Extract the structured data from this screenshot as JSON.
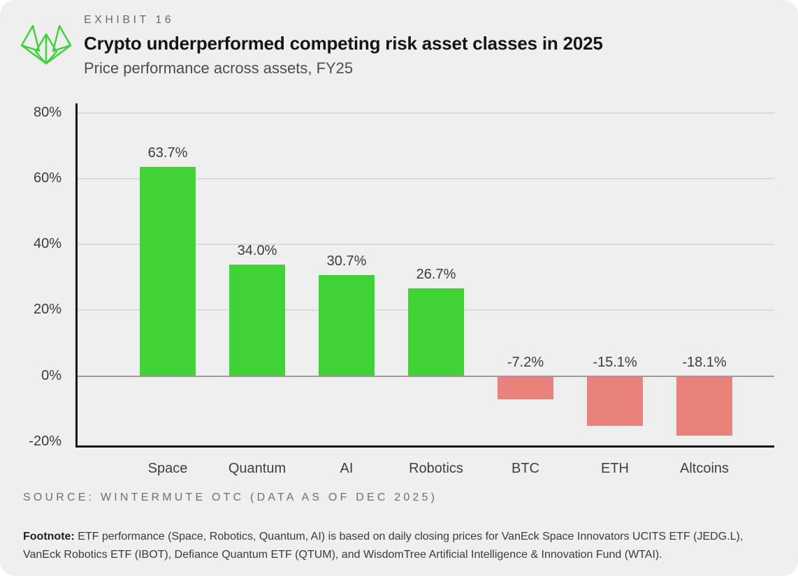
{
  "header": {
    "exhibit_label": "EXHIBIT 16",
    "title": "Crypto underperformed competing risk asset classes in 2025",
    "subtitle": "Price performance across assets, FY25"
  },
  "chart_data": {
    "type": "bar",
    "title": "Price performance across assets, FY25",
    "categories": [
      "Space",
      "Quantum",
      "AI",
      "Robotics",
      "BTC",
      "ETH",
      "Altcoins"
    ],
    "values": [
      63.7,
      34.0,
      30.7,
      26.7,
      -7.2,
      -15.1,
      -18.1
    ],
    "value_labels": [
      "63.7%",
      "34.0%",
      "30.7%",
      "26.7%",
      "-7.2%",
      "-15.1%",
      "-18.1%"
    ],
    "yticks": [
      80,
      60,
      40,
      20,
      0,
      -20
    ],
    "ytick_labels": [
      "80%",
      "60%",
      "40%",
      "20%",
      "0%",
      "-20%"
    ],
    "ylim": [
      -20.5,
      83
    ],
    "grid": true,
    "legend": "none",
    "xlabel": "",
    "ylabel": "",
    "colors": {
      "positive": "#3FD235",
      "negative": "#E8807C"
    }
  },
  "footer": {
    "source": "SOURCE: WINTERMUTE OTC (DATA AS OF DEC 2025)",
    "footnote_label": "Footnote:",
    "footnote_text": " ETF performance (Space, Robotics, Quantum, AI) is based on daily closing prices for VanEck Space Innovators UCITS ETF (JEDG.L), VanEck Robotics ETF (IBOT), Defiance Quantum ETF (QTUM), and WisdomTree Artificial Intelligence & Innovation Fund (WTAI)."
  },
  "colors": {
    "card_background": "#EFEFEF",
    "axis": "#161616",
    "gridline": "#DCDCDC",
    "zero_line": "#9B9B9B",
    "logo_green": "#3BD334"
  }
}
